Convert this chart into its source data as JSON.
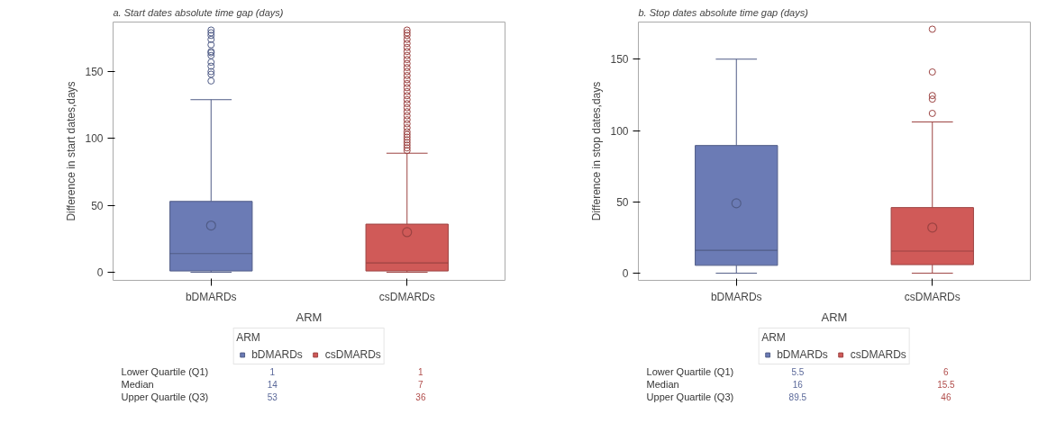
{
  "chart_data": [
    {
      "type": "box",
      "title": "a. Start dates absolute time gap (days)",
      "xlabel": "ARM",
      "ylabel": "Difference in start dates,days",
      "legend_title": "ARM",
      "legend": "bottom",
      "grid": false,
      "marker": "circle",
      "categories": [
        "bDMARDs",
        "csDMARDs"
      ],
      "ylim": [
        -6,
        187
      ],
      "yticks": [
        0,
        50,
        100,
        150
      ],
      "annotations": [
        "Lower Quartile (Q1)",
        "Median",
        "Upper Quartile (Q3)",
        "1",
        "14",
        "53",
        "1",
        "7",
        "36"
      ],
      "series": [
        {
          "name": "bDMARDs",
          "color": "#6b7bb5",
          "boxes": [
            {
              "low": 0,
              "q1": 1,
              "median": 14,
              "q3": 53,
              "high": 129,
              "mean": 35,
              "outliers": [
                143,
                148,
                150,
                154,
                157,
                162,
                164,
                165,
                170,
                174,
                177,
                179,
                181
              ]
            },
            null
          ]
        },
        {
          "name": "csDMARDs",
          "color": "#d05a58",
          "boxes": [
            null,
            {
              "low": 0,
              "q1": 1,
              "median": 7,
              "q3": 36,
              "high": 89,
              "mean": 30,
              "outliers": [
                91,
                93,
                95,
                97,
                99,
                101,
                103,
                105,
                108,
                111,
                114,
                117,
                120,
                123,
                126,
                129,
                132,
                135,
                138,
                141,
                144,
                147,
                150,
                153,
                156,
                159,
                162,
                165,
                168,
                171,
                174,
                177,
                179,
                181
              ]
            }
          ]
        }
      ]
    },
    {
      "type": "box",
      "title": "b. Stop dates absolute time gap (days)",
      "xlabel": "ARM",
      "ylabel": "Difference in stop dates,days",
      "legend_title": "ARM",
      "legend": "bottom",
      "grid": false,
      "marker": "circle",
      "categories": [
        "bDMARDs",
        "csDMARDs"
      ],
      "ylim": [
        -5,
        176
      ],
      "yticks": [
        0,
        50,
        100,
        150
      ],
      "annotations": [
        "Lower Quartile (Q1)",
        "Median",
        "Upper Quartile (Q3)",
        "5.5",
        "16",
        "89.5",
        "6",
        "15.5",
        "46"
      ],
      "series": [
        {
          "name": "bDMARDs",
          "color": "#6b7bb5",
          "boxes": [
            {
              "low": 0,
              "q1": 5.5,
              "median": 16,
              "q3": 89.5,
              "high": 150,
              "mean": 49
            },
            null
          ]
        },
        {
          "name": "csDMARDs",
          "color": "#d05a58",
          "boxes": [
            null,
            {
              "low": 0,
              "q1": 6,
              "median": 15.5,
              "q3": 46,
              "high": 106,
              "mean": 32,
              "outliers": [
                112,
                122,
                124.5,
                141,
                171
              ]
            }
          ]
        }
      ]
    }
  ]
}
